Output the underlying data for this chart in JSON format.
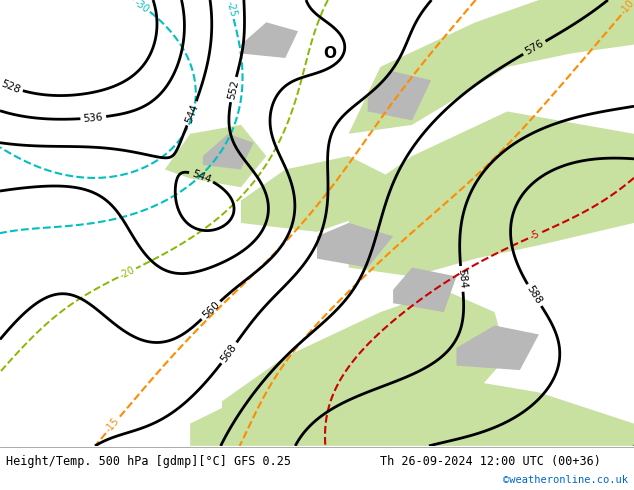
{
  "title_left": "Height/Temp. 500 hPa [gdmp][°C] GFS 0.25",
  "title_right": "Th 26-09-2024 12:00 UTC (00+36)",
  "watermark": "©weatheronline.co.uk",
  "watermark_color": "#0066cc",
  "bg_color": "#ffffff",
  "land_green": "#c8e0a0",
  "land_gray": "#c0c0c0",
  "ocean_color": "#d8d8d8",
  "fig_width": 6.34,
  "fig_height": 4.9,
  "dpi": 100,
  "bottom_bar_color": "#ffffff",
  "contour_height_color": "#000000",
  "contour_temp_cyan": "#00c0c0",
  "contour_temp_orange": "#ff8c00",
  "contour_temp_red": "#cc0000",
  "contour_temp_green": "#88b800",
  "contour_temp_yellow": "#c8b400"
}
